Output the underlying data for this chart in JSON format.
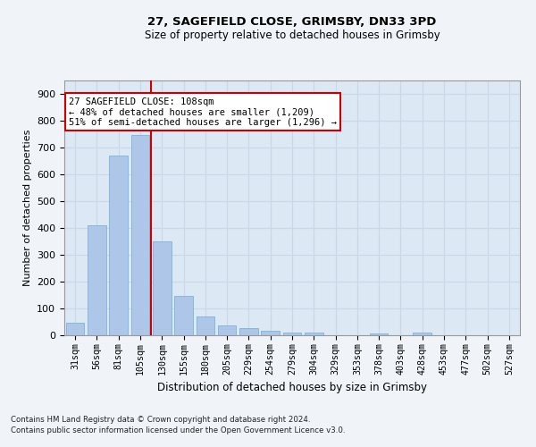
{
  "title1": "27, SAGEFIELD CLOSE, GRIMSBY, DN33 3PD",
  "title2": "Size of property relative to detached houses in Grimsby",
  "xlabel": "Distribution of detached houses by size in Grimsby",
  "ylabel": "Number of detached properties",
  "categories": [
    "31sqm",
    "56sqm",
    "81sqm",
    "105sqm",
    "130sqm",
    "155sqm",
    "180sqm",
    "205sqm",
    "229sqm",
    "254sqm",
    "279sqm",
    "304sqm",
    "329sqm",
    "353sqm",
    "378sqm",
    "403sqm",
    "428sqm",
    "453sqm",
    "477sqm",
    "502sqm",
    "527sqm"
  ],
  "values": [
    48,
    410,
    670,
    748,
    350,
    148,
    70,
    37,
    28,
    17,
    10,
    10,
    0,
    0,
    8,
    0,
    10,
    0,
    0,
    0,
    0
  ],
  "bar_color": "#aec6e8",
  "bar_edge_color": "#7ab4d8",
  "grid_color": "#c8d8ea",
  "background_color": "#dce8f4",
  "vline_color": "#cc0000",
  "annotation_text": "27 SAGEFIELD CLOSE: 108sqm\n← 48% of detached houses are smaller (1,209)\n51% of semi-detached houses are larger (1,296) →",
  "annotation_box_color": "#ffffff",
  "annotation_box_edge": "#cc0000",
  "ylim": [
    0,
    950
  ],
  "yticks": [
    0,
    100,
    200,
    300,
    400,
    500,
    600,
    700,
    800,
    900
  ],
  "footer1": "Contains HM Land Registry data © Crown copyright and database right 2024.",
  "footer2": "Contains public sector information licensed under the Open Government Licence v3.0."
}
